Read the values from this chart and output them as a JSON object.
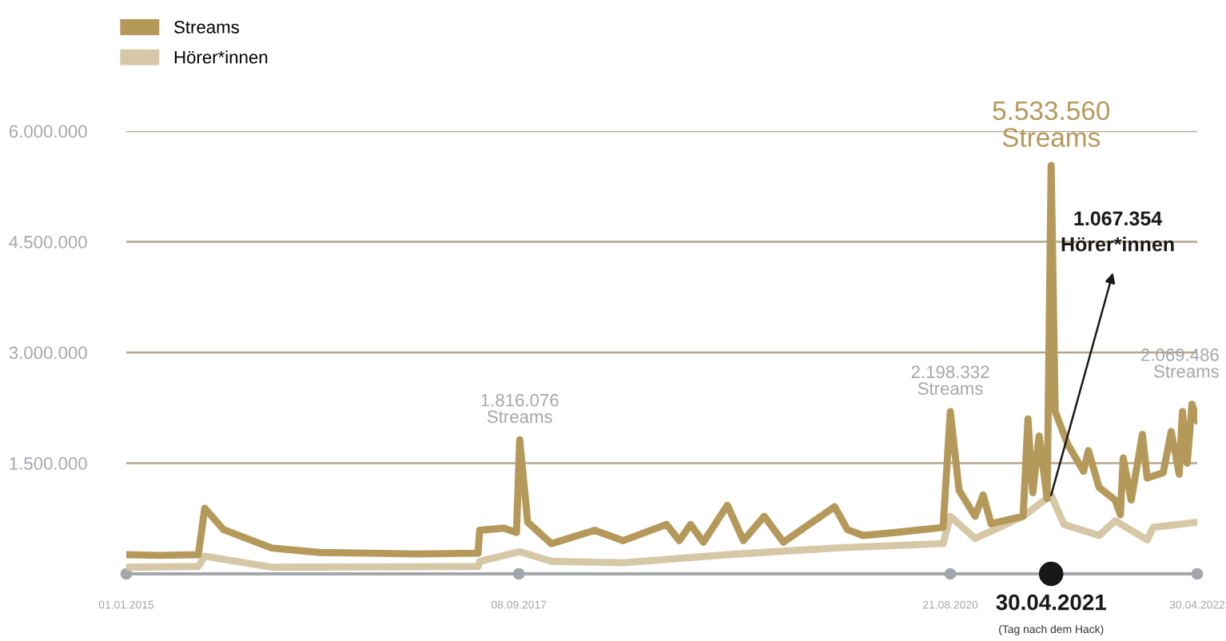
{
  "chart_data": {
    "type": "line",
    "series": [
      {
        "name": "Streams",
        "color": "#b5995a",
        "x": [
          "2015-01-01",
          "2015-03-26",
          "2015-06-30",
          "2015-07-16",
          "2015-09-01",
          "2015-12-30",
          "2016-04-28",
          "2016-08-26",
          "2016-12-24",
          "2017-05-29",
          "2017-06-02",
          "2017-08-01",
          "2017-09-02",
          "2017-09-10",
          "2017-09-30",
          "2017-11-28",
          "2018-03-16",
          "2018-05-27",
          "2018-09-12",
          "2018-10-14",
          "2018-11-11",
          "2018-12-13",
          "2019-02-11",
          "2019-03-23",
          "2019-05-14",
          "2019-07-01",
          "2019-11-06",
          "2019-12-08",
          "2020-01-16",
          "2020-04-05",
          "2020-08-03",
          "2020-08-21",
          "2020-09-12",
          "2020-10-22",
          "2020-11-11",
          "2020-12-01",
          "2021-01-10",
          "2021-02-19",
          "2021-03-03",
          "2021-03-15",
          "2021-03-31",
          "2021-04-20",
          "2021-04-30",
          "2021-05-10",
          "2021-06-10",
          "2021-07-20",
          "2021-08-01",
          "2021-08-28",
          "2021-10-07",
          "2021-10-20",
          "2021-10-27",
          "2021-11-16",
          "2021-12-14",
          "2021-12-26",
          "2022-02-04",
          "2022-02-24",
          "2022-03-16",
          "2022-03-24",
          "2022-04-05",
          "2022-04-17",
          "2022-04-30"
        ],
        "values": [
          260000,
          250000,
          260000,
          890000,
          600000,
          350000,
          290000,
          280000,
          270000,
          280000,
          590000,
          620000,
          560000,
          1816076,
          700000,
          410000,
          590000,
          450000,
          670000,
          450000,
          670000,
          430000,
          930000,
          450000,
          780000,
          430000,
          910000,
          600000,
          520000,
          560000,
          630000,
          2198332,
          1130000,
          780000,
          1070000,
          680000,
          730000,
          780000,
          2100000,
          1100000,
          1870000,
          1020000,
          5533560,
          2200000,
          1760000,
          1390000,
          1670000,
          1170000,
          1000000,
          800000,
          1570000,
          1000000,
          1890000,
          1300000,
          1370000,
          1930000,
          1350000,
          2200000,
          1500000,
          2300000,
          2069486
        ]
      },
      {
        "name": "Hörer*innen",
        "color": "#d6c7a6",
        "x": [
          "2015-01-01",
          "2015-06-30",
          "2015-07-16",
          "2015-12-30",
          "2017-05-29",
          "2017-06-02",
          "2017-09-10",
          "2017-11-28",
          "2018-05-27",
          "2019-02-11",
          "2019-11-06",
          "2020-08-03",
          "2020-08-21",
          "2020-10-22",
          "2021-02-19",
          "2021-04-30",
          "2021-06-01",
          "2021-08-28",
          "2021-10-07",
          "2021-12-26",
          "2022-01-10",
          "2022-04-30"
        ],
        "values": [
          90000,
          100000,
          240000,
          90000,
          100000,
          170000,
          300000,
          170000,
          150000,
          260000,
          350000,
          410000,
          780000,
          480000,
          780000,
          1067354,
          670000,
          520000,
          720000,
          460000,
          630000,
          700000
        ]
      }
    ],
    "xlim": [
      "2015-01-01",
      "2022-04-30"
    ],
    "xticks": [
      {
        "value": "2015-01-01",
        "label": "01.01.2015"
      },
      {
        "value": "2017-09-08",
        "label": "08.09.2017"
      },
      {
        "value": "2020-08-21",
        "label": "21.08.2020"
      },
      {
        "value": "2022-04-30",
        "label": "30.04.2022"
      }
    ],
    "ylim": [
      0,
      6000000
    ],
    "yticks": [
      {
        "value": 1500000,
        "label": "1.500.000"
      },
      {
        "value": 3000000,
        "label": "3.000.000"
      },
      {
        "value": 4500000,
        "label": "4.500.000"
      },
      {
        "value": 6000000,
        "label": "6.000.000"
      }
    ],
    "grid": "y",
    "legend": "top left",
    "annotations": [
      {
        "text": "30.04.2021",
        "x": "2021-04-30",
        "y": 0
      },
      {
        "text": "1.816.076\nStreams",
        "x": "2017-09-10",
        "y": 1816076
      },
      {
        "text": "2.198.332\nStreams",
        "x": "2020-08-21",
        "y": 2198332
      },
      {
        "text": "5.533.560\nStreams",
        "x": "2021-04-30",
        "y": 5533560
      },
      {
        "text": "1.067.354\nHörer*innen",
        "x": "2021-04-30",
        "y": 1067354
      },
      {
        "text": "2.069.486\nStreams",
        "x": "2022-04-30",
        "y": 2069486
      },
      "(Tag nach dem Hack)"
    ]
  }
}
